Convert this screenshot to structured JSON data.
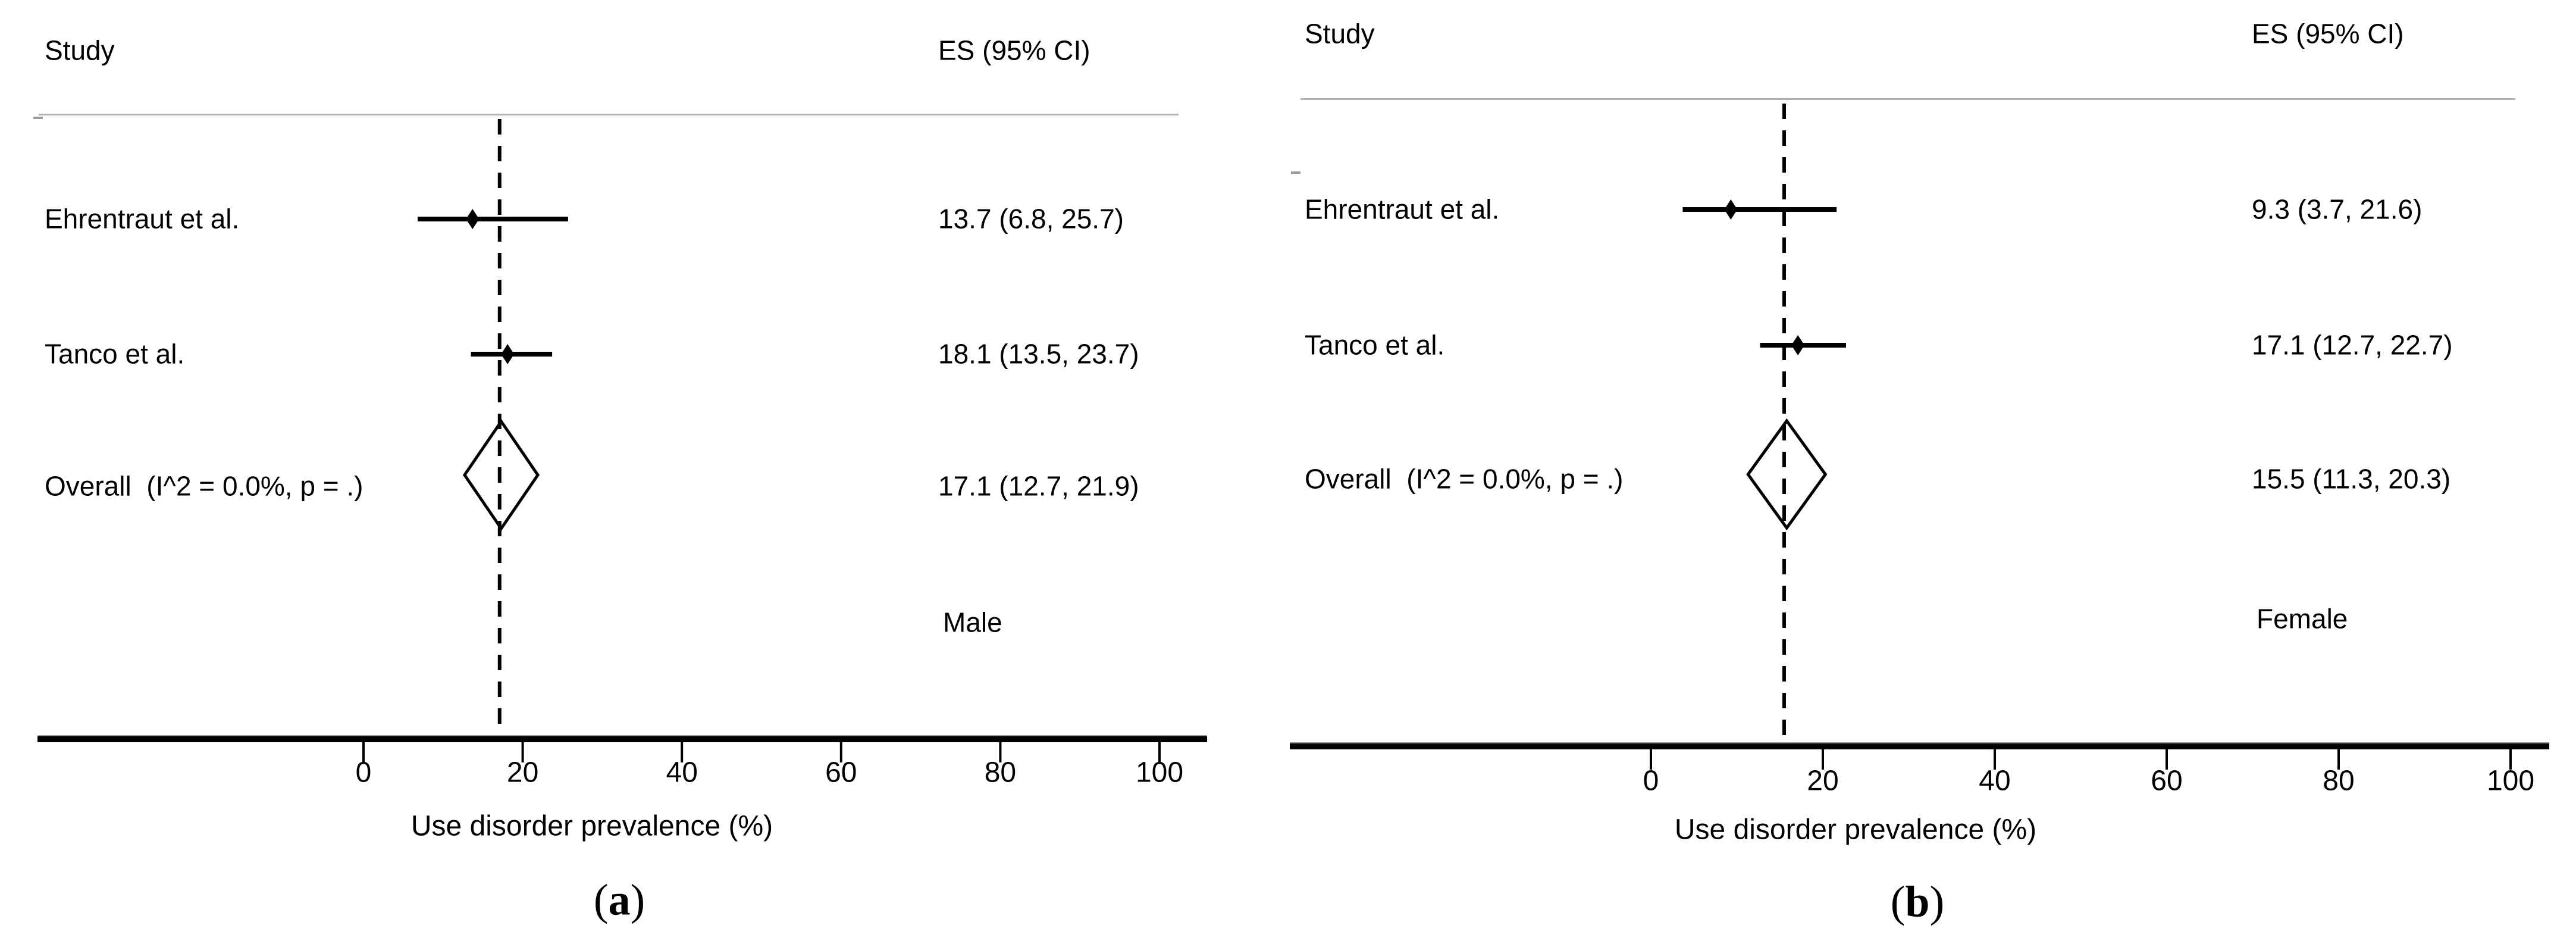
{
  "figure": {
    "background": "#ffffff",
    "text_color": "#000000",
    "gray_line_color": "#b3b3b3",
    "axis_color": "#000000"
  },
  "chart_data": [
    {
      "type": "forest",
      "panel_id": "a",
      "columns": {
        "study": "Study",
        "es": "ES (95% CI)"
      },
      "studies": [
        {
          "label": "Ehrentraut et al.",
          "es": 13.7,
          "ci_low": 6.8,
          "ci_high": 25.7,
          "es_text": "13.7 (6.8, 25.7)"
        },
        {
          "label": "Tanco et al.",
          "es": 18.1,
          "ci_low": 13.5,
          "ci_high": 23.7,
          "es_text": "18.1 (13.5, 23.7)"
        }
      ],
      "overall": {
        "label": "Overall  (I^2 = 0.0%, p = .)",
        "es": 17.1,
        "ci_low": 12.7,
        "ci_high": 21.9,
        "es_text": "17.1 (12.7, 21.9)"
      },
      "group_label": "Male",
      "reference_line_x": 17.1,
      "x_ticks": [
        0,
        20,
        40,
        60,
        80,
        100
      ],
      "xlim": [
        0,
        100
      ],
      "xlabel": "Use disorder prevalence (%)",
      "caption": {
        "open": "(",
        "letter": "a",
        "close": ")"
      },
      "legend": "none",
      "grid": false
    },
    {
      "type": "forest",
      "panel_id": "b",
      "columns": {
        "study": "Study",
        "es": "ES (95% CI)"
      },
      "studies": [
        {
          "label": "Ehrentraut et al.",
          "es": 9.3,
          "ci_low": 3.7,
          "ci_high": 21.6,
          "es_text": "9.3 (3.7, 21.6)"
        },
        {
          "label": "Tanco et al.",
          "es": 17.1,
          "ci_low": 12.7,
          "ci_high": 22.7,
          "es_text": "17.1 (12.7, 22.7)"
        }
      ],
      "overall": {
        "label": "Overall  (I^2 = 0.0%, p = .)",
        "es": 15.5,
        "ci_low": 11.3,
        "ci_high": 20.3,
        "es_text": "15.5 (11.3, 20.3)"
      },
      "group_label": "Female",
      "reference_line_x": 15.5,
      "x_ticks": [
        0,
        20,
        40,
        60,
        80,
        100
      ],
      "xlim": [
        0,
        100
      ],
      "xlabel": "Use disorder prevalence (%)",
      "caption": {
        "open": "(",
        "letter": "b",
        "close": ")"
      },
      "legend": "none",
      "grid": false
    }
  ]
}
